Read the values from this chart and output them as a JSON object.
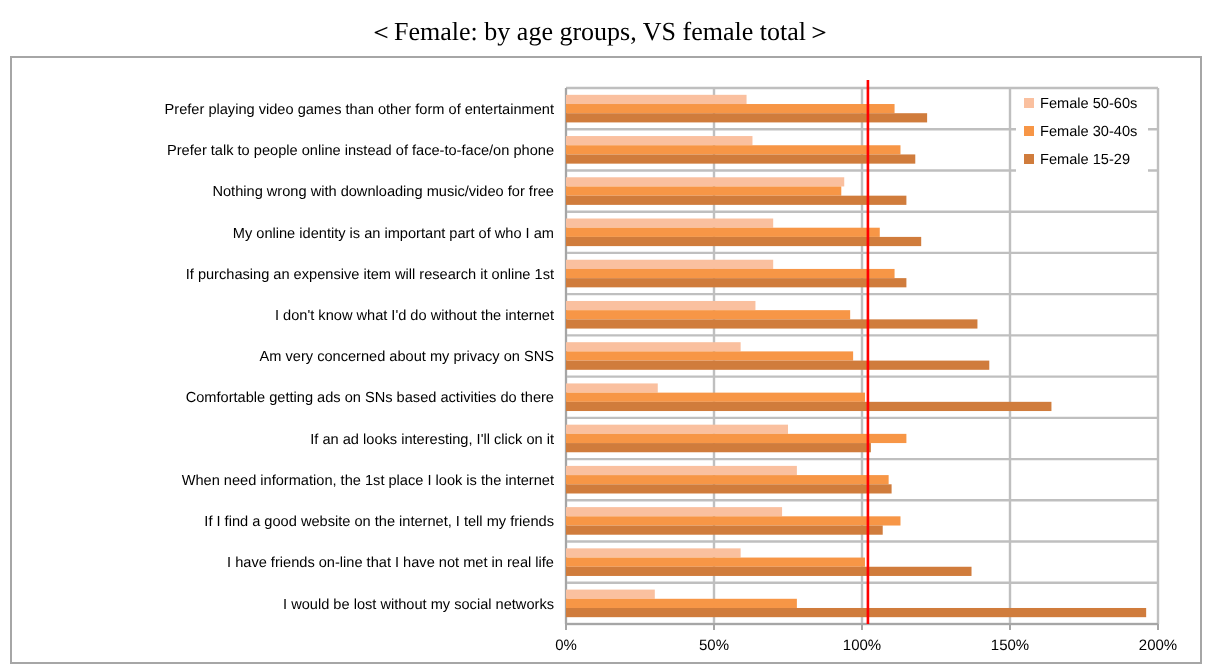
{
  "chart_data": {
    "type": "bar",
    "orientation": "horizontal",
    "title": "＜Female: by age groups, VS female total＞",
    "categories": [
      "Prefer playing video games than other form of entertainment",
      "Prefer talk to people online instead of face-to-face/on phone",
      "Nothing wrong with downloading music/video for free",
      "My online identity is an important part of who I am",
      "If purchasing an expensive item will research it online 1st",
      "I don't know what I'd do without the internet",
      "Am very concerned about my privacy on SNS",
      "Comfortable getting ads on SNs based activities do there",
      "If an ad looks interesting, I'll click on it",
      "When need information, the 1st place I look is the internet",
      "If I find a good website on the internet, I tell my friends",
      "I have friends on-line that I have not met in real life",
      "I would be lost without my social networks"
    ],
    "series": [
      {
        "name": "Female 50-60s",
        "color": "#fac09f",
        "values": [
          61,
          63,
          94,
          70,
          70,
          64,
          59,
          31,
          75,
          78,
          73,
          59,
          30
        ]
      },
      {
        "name": "Female 30-40s",
        "color": "#f79646",
        "values": [
          111,
          113,
          93,
          106,
          111,
          96,
          97,
          101,
          115,
          109,
          113,
          101,
          78
        ]
      },
      {
        "name": "Female 15-29",
        "color": "#d07c3c",
        "values": [
          122,
          118,
          115,
          120,
          115,
          139,
          143,
          164,
          103,
          110,
          107,
          137,
          196
        ]
      }
    ],
    "xlim": [
      0,
      200
    ],
    "xticks": [
      {
        "value": 0,
        "label": "0%"
      },
      {
        "value": 50,
        "label": "50%"
      },
      {
        "value": 100,
        "label": "100%"
      },
      {
        "value": 150,
        "label": "150%"
      },
      {
        "value": 200,
        "label": "200%"
      }
    ],
    "ref_lines": [
      {
        "axis": "x",
        "value": 102,
        "color": "#ff0000"
      }
    ],
    "grid": true,
    "legend": "top right"
  }
}
